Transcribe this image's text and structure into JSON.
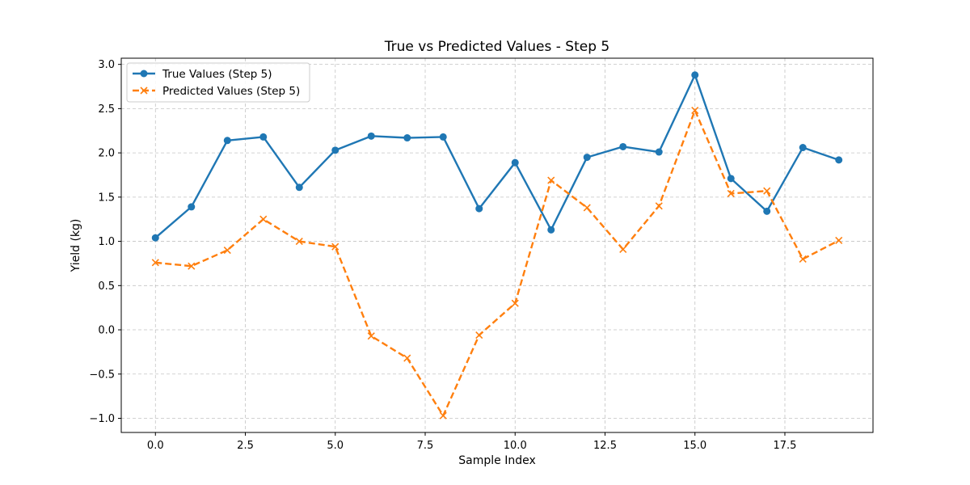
{
  "chart_data": {
    "type": "line",
    "title": "True vs Predicted Values - Step 5",
    "xlabel": "Sample Index",
    "ylabel": "Yield (kg)",
    "xlim": [
      -0.95,
      19.95
    ],
    "ylim": [
      -1.16,
      3.07
    ],
    "x_ticks": [
      0.0,
      2.5,
      5.0,
      7.5,
      10.0,
      12.5,
      15.0,
      17.5
    ],
    "x_tick_labels": [
      "0.0",
      "2.5",
      "5.0",
      "7.5",
      "10.0",
      "12.5",
      "15.0",
      "17.5"
    ],
    "y_ticks": [
      -1.0,
      -0.5,
      0.0,
      0.5,
      1.0,
      1.5,
      2.0,
      2.5,
      3.0
    ],
    "y_tick_labels": [
      "−1.0",
      "−0.5",
      "0.0",
      "0.5",
      "1.0",
      "1.5",
      "2.0",
      "2.5",
      "3.0"
    ],
    "grid": true,
    "legend_position": "top-left",
    "x": [
      0,
      1,
      2,
      3,
      4,
      5,
      6,
      7,
      8,
      9,
      10,
      11,
      12,
      13,
      14,
      15,
      16,
      17,
      18,
      19
    ],
    "series": [
      {
        "name": "True Values (Step 5)",
        "color": "#1f77b4",
        "line_style": "solid",
        "marker": "circle",
        "values": [
          1.04,
          1.39,
          2.14,
          2.18,
          1.61,
          2.03,
          2.19,
          2.17,
          2.18,
          1.37,
          1.89,
          1.13,
          1.95,
          2.07,
          2.01,
          2.88,
          1.71,
          1.34,
          2.06,
          1.92
        ]
      },
      {
        "name": "Predicted Values (Step 5)",
        "color": "#ff7f0e",
        "line_style": "dashed",
        "marker": "x",
        "values": [
          0.76,
          0.72,
          0.9,
          1.25,
          1.0,
          0.94,
          -0.07,
          -0.32,
          -0.97,
          -0.06,
          0.3,
          1.69,
          1.38,
          0.91,
          1.4,
          2.48,
          1.54,
          1.57,
          0.8,
          1.01
        ]
      }
    ]
  }
}
